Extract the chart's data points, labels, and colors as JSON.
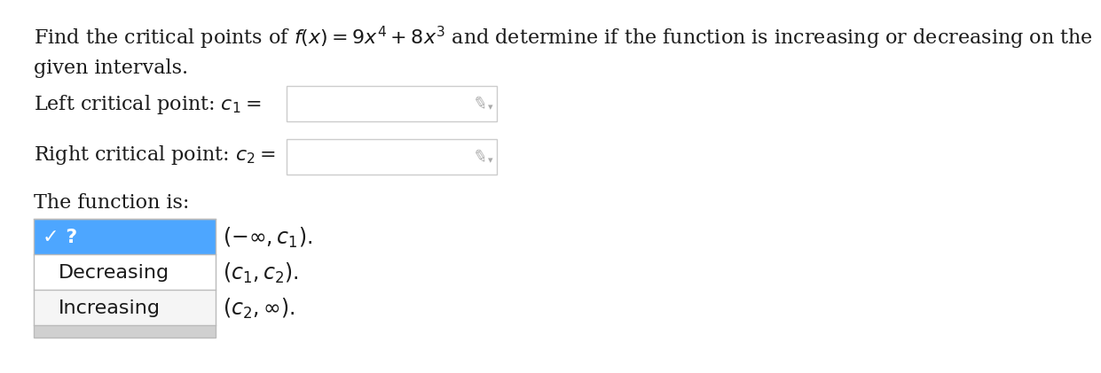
{
  "background_color": "#ffffff",
  "text_color": "#1a1a1a",
  "title_line1": "Find the critical points of $f(x) = 9x^4 + 8x^3$ and determine if the function is increasing or decreasing on the",
  "title_line2": "given intervals.",
  "left_cp_label": "Left critical point: $c_1 =$",
  "right_cp_label": "Right critical point: $c_2 =$",
  "function_is_label": "The function is:",
  "dropdown_highlight_color": "#4da6ff",
  "dropdown_bg_color": "#f5f5f5",
  "dropdown_border_color": "#bbbbbb",
  "input_box_color": "#ffffff",
  "input_box_border": "#cccccc",
  "pencil_color": "#aaaaaa",
  "scroll_bar_color": "#d0d0d0",
  "font_size": 16,
  "interval_font_size": 17
}
